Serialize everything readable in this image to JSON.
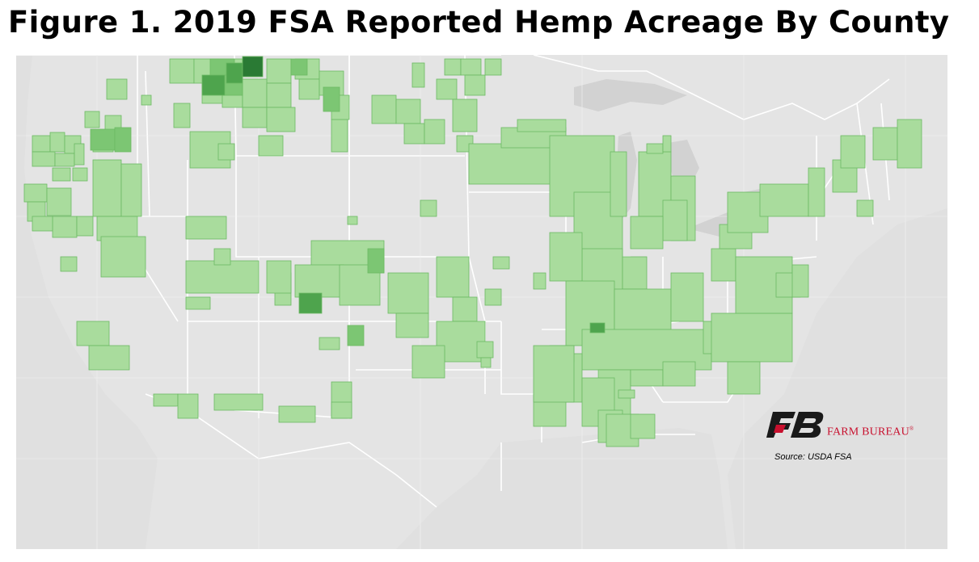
{
  "title": "Figure 1. 2019 FSA Reported Hemp Acreage By County",
  "source": "Source:  USDA FSA",
  "logo": {
    "text": "FARM BUREAU",
    "icon": "farm-bureau-fb-logo"
  },
  "colors": {
    "land": "#e8e8e8",
    "borders": "#ffffff",
    "water": "#d4d4d4",
    "county_light": "#a9dc9d",
    "county_medium": "#7cc673",
    "county_dark": "#4ea44d",
    "county_darkest": "#2a7a34",
    "logo_red": "#c8102e",
    "logo_black": "#1a1a1a"
  }
}
